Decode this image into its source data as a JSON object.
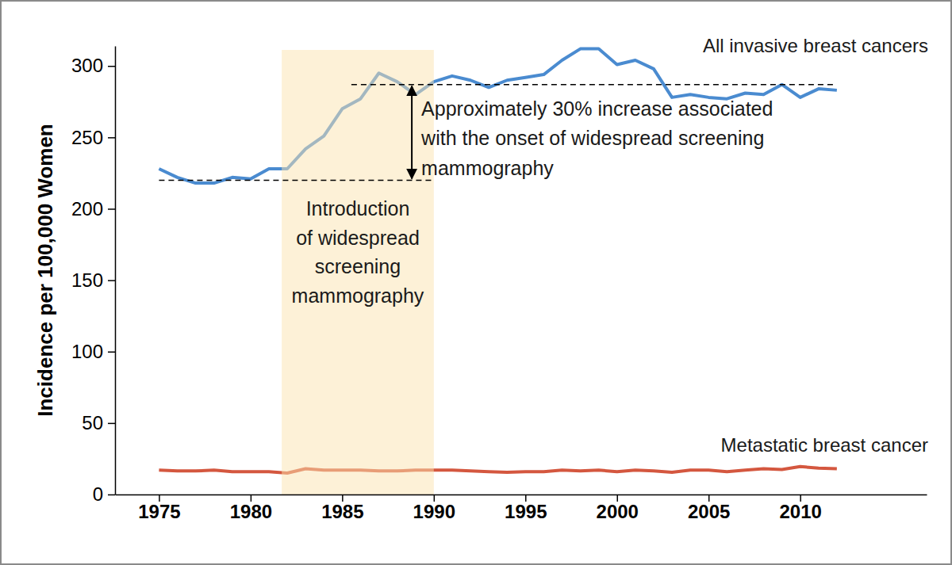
{
  "chart_data": {
    "type": "line",
    "ylabel": "Incidence per 100,000 Women",
    "x": [
      1975,
      1976,
      1977,
      1978,
      1979,
      1980,
      1981,
      1982,
      1983,
      1984,
      1985,
      1986,
      1987,
      1988,
      1989,
      1990,
      1991,
      1992,
      1993,
      1994,
      1995,
      1996,
      1997,
      1998,
      1999,
      2000,
      2001,
      2002,
      2003,
      2004,
      2005,
      2006,
      2007,
      2008,
      2009,
      2010,
      2011,
      2012
    ],
    "series": [
      {
        "name": "All invasive breast cancers",
        "color": "#4a8bd0",
        "values": [
          228,
          222,
          218,
          218,
          222,
          221,
          228,
          228,
          242,
          251,
          270,
          277,
          295,
          289,
          280,
          289,
          293,
          290,
          285,
          290,
          292,
          294,
          304,
          312,
          312,
          301,
          304,
          298,
          278,
          280,
          278,
          277,
          281,
          280,
          287,
          278,
          284,
          283
        ]
      },
      {
        "name": "Metastatic breast cancer",
        "color": "#d4573f",
        "values": [
          17,
          16.5,
          16.5,
          17,
          16,
          16,
          16,
          15,
          18,
          17,
          17,
          17,
          16.5,
          16.5,
          17,
          17,
          17,
          16.5,
          16,
          15.5,
          16,
          16,
          17,
          16.5,
          17,
          16,
          17,
          16.5,
          15.5,
          17,
          17,
          16,
          17,
          18,
          17.5,
          19.5,
          18.5,
          18
        ]
      }
    ],
    "xlim": [
      1972.6,
      2016.9
    ],
    "ylim": [
      0,
      314
    ],
    "xticks": [
      1975,
      1980,
      1985,
      1990,
      1995,
      2000,
      2005,
      2010
    ],
    "yticks": [
      0,
      50,
      100,
      150,
      200,
      250,
      300
    ],
    "grid": false,
    "shaded_region": {
      "x": [
        1981.7,
        1990
      ],
      "label": [
        "Introduction",
        "of widespread",
        "screening",
        "mammography"
      ]
    },
    "reference_lines": [
      {
        "y": 220,
        "x": [
          1975,
          1990
        ]
      },
      {
        "y": 287,
        "x": [
          1985.5,
          2012
        ]
      }
    ],
    "arrow": {
      "x": 1988.8,
      "y": [
        220,
        287
      ]
    },
    "annotation": [
      "Approximately 30% increase associated",
      "with the onset of widespread screening",
      "mammography"
    ]
  }
}
